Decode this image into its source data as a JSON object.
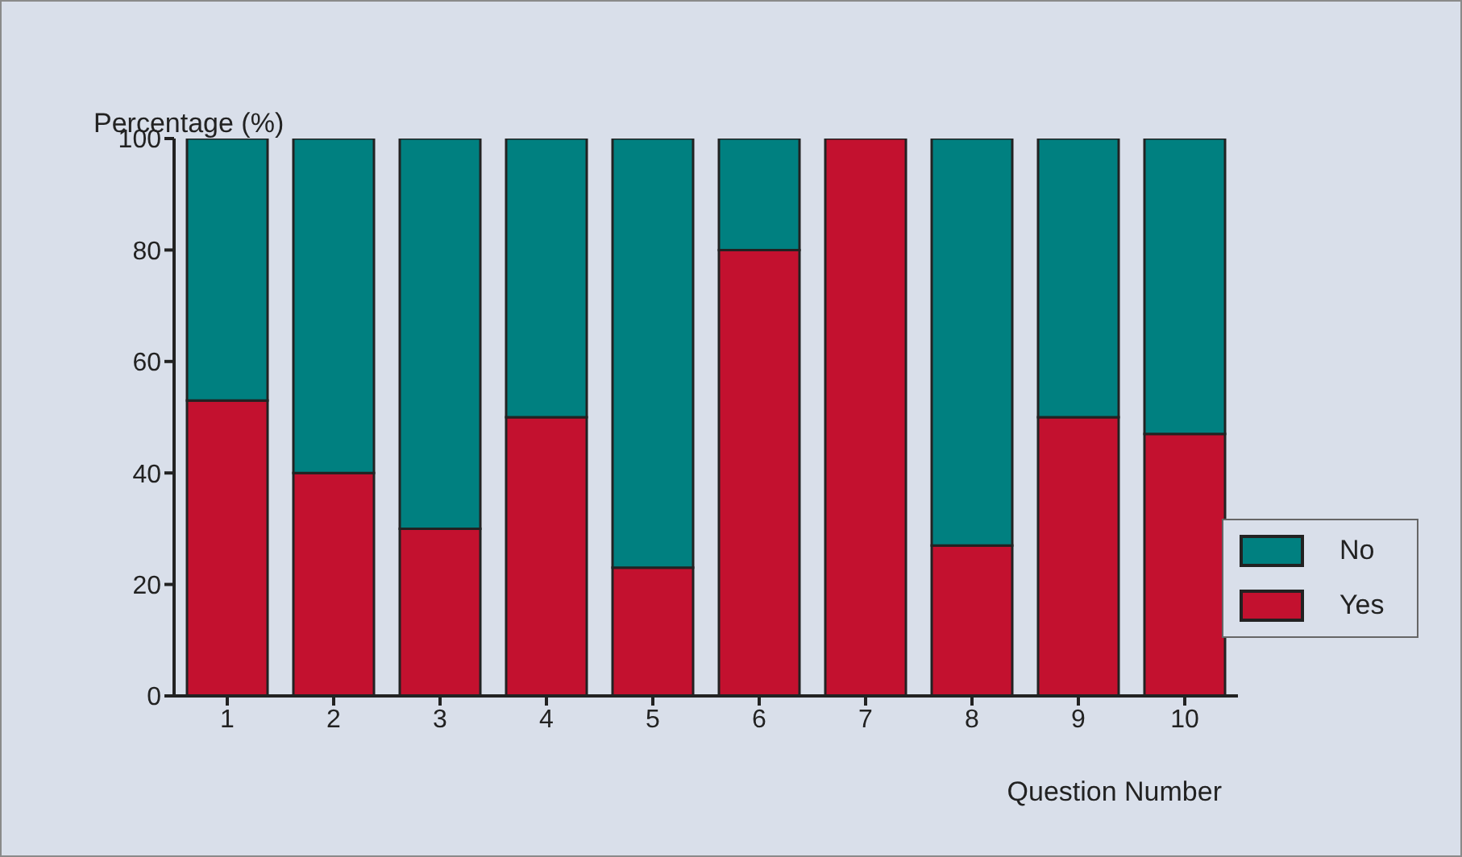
{
  "chart_data": {
    "type": "bar",
    "stacked": true,
    "ylabel": "Percentage (%)",
    "xlabel": "Question Number",
    "categories": [
      "1",
      "2",
      "3",
      "4",
      "5",
      "6",
      "7",
      "8",
      "9",
      "10"
    ],
    "series": [
      {
        "name": "Yes",
        "color": "#c3112f",
        "values": [
          53,
          40,
          30,
          50,
          23,
          80,
          100,
          27,
          50,
          47
        ]
      },
      {
        "name": "No",
        "color": "#008080",
        "values": [
          47,
          60,
          70,
          50,
          77,
          20,
          0,
          73,
          50,
          53
        ]
      }
    ],
    "ylim": [
      0,
      100
    ],
    "yticks": [
      0,
      20,
      40,
      60,
      80,
      100
    ],
    "grid": false,
    "legend": "right"
  }
}
